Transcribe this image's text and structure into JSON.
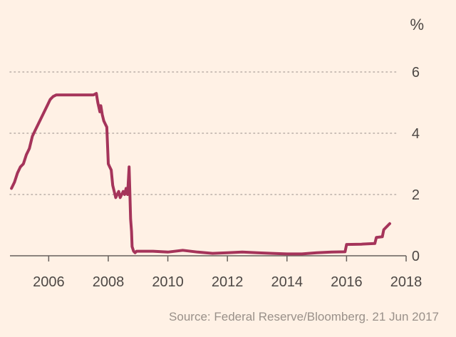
{
  "chart_data": {
    "type": "line",
    "unit": "%",
    "source": "Source: Federal Reserve/Bloomberg. 21 Jun 2017",
    "xlim": [
      2004.7,
      2018
    ],
    "ylim": [
      0,
      6
    ],
    "x_ticks": [
      2006,
      2008,
      2010,
      2012,
      2014,
      2016,
      2018
    ],
    "y_ticks": [
      0,
      2,
      4,
      6
    ],
    "grid": "horizontal dotted",
    "series": [
      {
        "color": "#a5345a",
        "x": [
          2004.75,
          2004.85,
          2004.95,
          2005.05,
          2005.15,
          2005.25,
          2005.35,
          2005.45,
          2005.55,
          2005.65,
          2005.75,
          2005.85,
          2005.95,
          2006.05,
          2006.15,
          2006.25,
          2006.35,
          2006.45,
          2006.55,
          2006.7,
          2006.9,
          2007.1,
          2007.3,
          2007.5,
          2007.6,
          2007.65,
          2007.72,
          2007.75,
          2007.8,
          2007.85,
          2007.9,
          2007.95,
          2008.0,
          2008.05,
          2008.1,
          2008.15,
          2008.2,
          2008.25,
          2008.3,
          2008.35,
          2008.4,
          2008.45,
          2008.5,
          2008.55,
          2008.6,
          2008.65,
          2008.7,
          2008.72,
          2008.75,
          2008.78,
          2008.8,
          2008.85,
          2008.9,
          2008.95,
          2009.0,
          2009.5,
          2010.0,
          2010.5,
          2011.0,
          2011.5,
          2012.0,
          2012.5,
          2013.0,
          2013.5,
          2014.0,
          2014.5,
          2015.0,
          2015.5,
          2015.95,
          2016.0,
          2016.5,
          2016.95,
          2017.0,
          2017.2,
          2017.25,
          2017.45
        ],
        "y": [
          2.2,
          2.4,
          2.7,
          2.9,
          3.0,
          3.3,
          3.5,
          3.9,
          4.1,
          4.3,
          4.5,
          4.7,
          4.9,
          5.1,
          5.2,
          5.25,
          5.25,
          5.25,
          5.25,
          5.25,
          5.25,
          5.25,
          5.25,
          5.25,
          5.3,
          5.0,
          4.7,
          4.9,
          4.6,
          4.4,
          4.3,
          4.2,
          3.0,
          2.9,
          2.8,
          2.3,
          2.1,
          1.9,
          2.0,
          2.1,
          1.9,
          2.0,
          2.1,
          2.0,
          2.2,
          2.0,
          2.9,
          2.2,
          1.2,
          0.8,
          0.3,
          0.15,
          0.1,
          0.15,
          0.15,
          0.15,
          0.12,
          0.18,
          0.12,
          0.08,
          0.1,
          0.12,
          0.1,
          0.08,
          0.06,
          0.06,
          0.1,
          0.12,
          0.13,
          0.37,
          0.38,
          0.4,
          0.6,
          0.62,
          0.85,
          1.05
        ]
      }
    ]
  }
}
